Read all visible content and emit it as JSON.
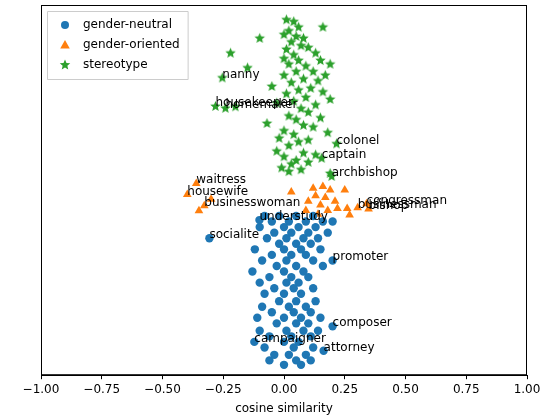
{
  "chart_data": {
    "type": "scatter",
    "x_label": "cosine similarity",
    "xlim": [
      -1,
      1
    ],
    "xticks": [
      {
        "value": -1,
        "label": "−1.00"
      },
      {
        "value": -0.75,
        "label": "−0.75"
      },
      {
        "value": -0.5,
        "label": "−0.50"
      },
      {
        "value": -0.25,
        "label": "−0.25"
      },
      {
        "value": 0,
        "label": "0.00"
      },
      {
        "value": 0.25,
        "label": "0.25"
      },
      {
        "value": 0.5,
        "label": "0.50"
      },
      {
        "value": 0.75,
        "label": "0.75"
      },
      {
        "value": 1,
        "label": "1.00"
      }
    ],
    "ylim": [
      0,
      100
    ],
    "tick_labels": "x",
    "grid": false,
    "legend": "upper left",
    "series": [
      {
        "name": "gender-neutral",
        "color": "#1f77b4",
        "marker": "circle",
        "x": [
          -0.08,
          -0.02,
          0.05,
          0.12,
          -0.05,
          0.02,
          0.09,
          0.16,
          0.2,
          -0.1,
          0.0,
          0.06,
          0.13,
          -0.04,
          0.03,
          0.1,
          0.18,
          -0.307,
          -0.07,
          0.01,
          0.08,
          0.14,
          -0.02,
          0.05,
          0.11,
          -0.12,
          0.0,
          0.07,
          0.15,
          -0.05,
          0.03,
          0.09,
          -0.09,
          0.01,
          0.12,
          0.2,
          -0.03,
          0.05,
          0.16,
          -0.13,
          0.0,
          0.08,
          -0.06,
          0.03,
          0.1,
          -0.1,
          0.01,
          0.06,
          -0.04,
          0.04,
          0.12,
          -0.08,
          0.0,
          0.07,
          -0.02,
          0.05,
          0.13,
          -0.09,
          0.02,
          0.09,
          -0.05,
          0.04,
          0.11,
          -0.11,
          0.0,
          0.07,
          0.15,
          -0.03,
          0.05,
          0.1,
          0.2,
          -0.1,
          0.01,
          0.08,
          0.14,
          -0.06,
          0.03,
          0.11,
          -0.122,
          0.0,
          0.06,
          -0.08,
          0.04,
          0.12,
          0.163,
          -0.04,
          0.02,
          0.09,
          -0.06,
          0.05,
          0.11,
          0.0,
          0.07,
          -0.101
        ],
        "values": [
          43,
          43,
          43,
          43,
          41.5,
          41.5,
          41.5,
          41.5,
          41.5,
          40,
          40,
          40,
          40,
          38.5,
          38.5,
          38.5,
          38.5,
          37,
          37,
          37,
          37,
          37,
          35.5,
          35.5,
          35.5,
          34,
          34,
          34,
          34,
          32.5,
          32.5,
          32.5,
          31,
          31,
          31,
          31,
          29.5,
          29.5,
          29.5,
          28,
          28,
          28,
          26.5,
          26.5,
          26.5,
          25,
          25,
          25,
          23.5,
          23.5,
          23.5,
          22,
          22,
          22,
          20,
          20,
          20,
          18.5,
          18.5,
          18.5,
          17,
          17,
          17,
          15.5,
          15.5,
          15.5,
          15.5,
          14,
          14,
          14,
          13.2,
          12,
          12,
          12,
          12,
          10.5,
          10.5,
          10.5,
          9,
          9,
          9,
          7.5,
          7.5,
          7.5,
          6.6,
          5.5,
          5.5,
          5.5,
          4,
          4,
          4,
          2.8,
          2.8,
          41.9
        ]
      },
      {
        "name": "gender-oriented",
        "color": "#ff7f0e",
        "marker": "triangle",
        "x": [
          -0.361,
          -0.398,
          -0.328,
          0.34,
          0.348,
          0.303,
          -0.35,
          -0.3,
          0.03,
          0.12,
          0.16,
          0.19,
          0.25,
          0.13,
          0.17,
          0.21,
          0.1,
          0.15,
          0.22,
          0.26,
          0.18,
          0.14,
          0.27,
          0.09
        ],
        "values": [
          51.8,
          48.8,
          45.8,
          46.3,
          44.9,
          45.2,
          44.4,
          47.5,
          49.5,
          50.5,
          51,
          50,
          50,
          48.5,
          48,
          47,
          47,
          46,
          45,
          45,
          44.5,
          43.5,
          43.3,
          44.5
        ]
      },
      {
        "name": "stereotype",
        "color": "#2ca02c",
        "marker": "star",
        "x": [
          0.01,
          0.04,
          0.06,
          0.02,
          0.0,
          0.05,
          0.08,
          -0.1,
          0.16,
          0.03,
          0.07,
          0.01,
          0.1,
          0.13,
          -0.22,
          0.04,
          0.0,
          0.06,
          0.15,
          0.19,
          0.02,
          0.09,
          -0.15,
          0.12,
          0.05,
          0.0,
          0.17,
          0.08,
          0.14,
          0.03,
          -0.05,
          0.11,
          0.06,
          0.16,
          0.01,
          0.09,
          0.19,
          0.04,
          -0.03,
          0.13,
          0.07,
          -0.2,
          0.1,
          0.02,
          0.15,
          0.05,
          -0.07,
          0.08,
          0.12,
          0.0,
          0.18,
          0.04,
          -0.02,
          0.1,
          0.06,
          0.02,
          -0.03,
          0.08,
          0.13,
          0.0,
          0.05,
          0.1,
          0.03,
          -0.01,
          0.07,
          0.02,
          0.19,
          -0.254,
          -0.282,
          -0.241,
          0.216,
          0.155,
          0.196
        ],
        "values": [
          96,
          95.5,
          94,
          93,
          92,
          91.5,
          91,
          91,
          94,
          90,
          89,
          88,
          88.5,
          87,
          87,
          86.5,
          85.5,
          85,
          85,
          84,
          84,
          83.5,
          83,
          82,
          82,
          81,
          81,
          80,
          79.5,
          79,
          78,
          77.5,
          77,
          76.5,
          76,
          75,
          74.5,
          74,
          73.5,
          73,
          72,
          72.5,
          71,
          70,
          69.5,
          69,
          68,
          67.5,
          67,
          66,
          65.5,
          65,
          64,
          63.5,
          63,
          62,
          60.5,
          60,
          59.5,
          59,
          58,
          57.5,
          57,
          56,
          55.5,
          55,
          54.5,
          80.3,
          72.6,
          72.1,
          62.5,
          58.6,
          53.7
        ]
      }
    ],
    "annotations": [
      {
        "text": "nanny",
        "x": -0.254,
        "y": 80.3
      },
      {
        "text": "housekeeper",
        "x": -0.282,
        "y": 72.6
      },
      {
        "text": "homemaker",
        "x": -0.241,
        "y": 72.1
      },
      {
        "text": "colonel",
        "x": 0.216,
        "y": 62.5
      },
      {
        "text": "captain",
        "x": 0.155,
        "y": 58.6
      },
      {
        "text": "archbishop",
        "x": 0.196,
        "y": 53.7
      },
      {
        "text": "waitress",
        "x": -0.361,
        "y": 51.8
      },
      {
        "text": "housewife",
        "x": -0.398,
        "y": 48.8
      },
      {
        "text": "businesswoman",
        "x": -0.328,
        "y": 45.8
      },
      {
        "text": "congressman",
        "x": 0.34,
        "y": 46.3
      },
      {
        "text": "bishop",
        "x": 0.348,
        "y": 44.9
      },
      {
        "text": "businessman",
        "x": 0.303,
        "y": 45.2
      },
      {
        "text": "understudy",
        "x": -0.101,
        "y": 41.9
      },
      {
        "text": "socialite",
        "x": -0.307,
        "y": 37
      },
      {
        "text": "promoter",
        "x": 0.2,
        "y": 31
      },
      {
        "text": "composer",
        "x": 0.2,
        "y": 13.2
      },
      {
        "text": "campaigner",
        "x": -0.122,
        "y": 9
      },
      {
        "text": "attorney",
        "x": 0.163,
        "y": 6.6
      }
    ]
  }
}
